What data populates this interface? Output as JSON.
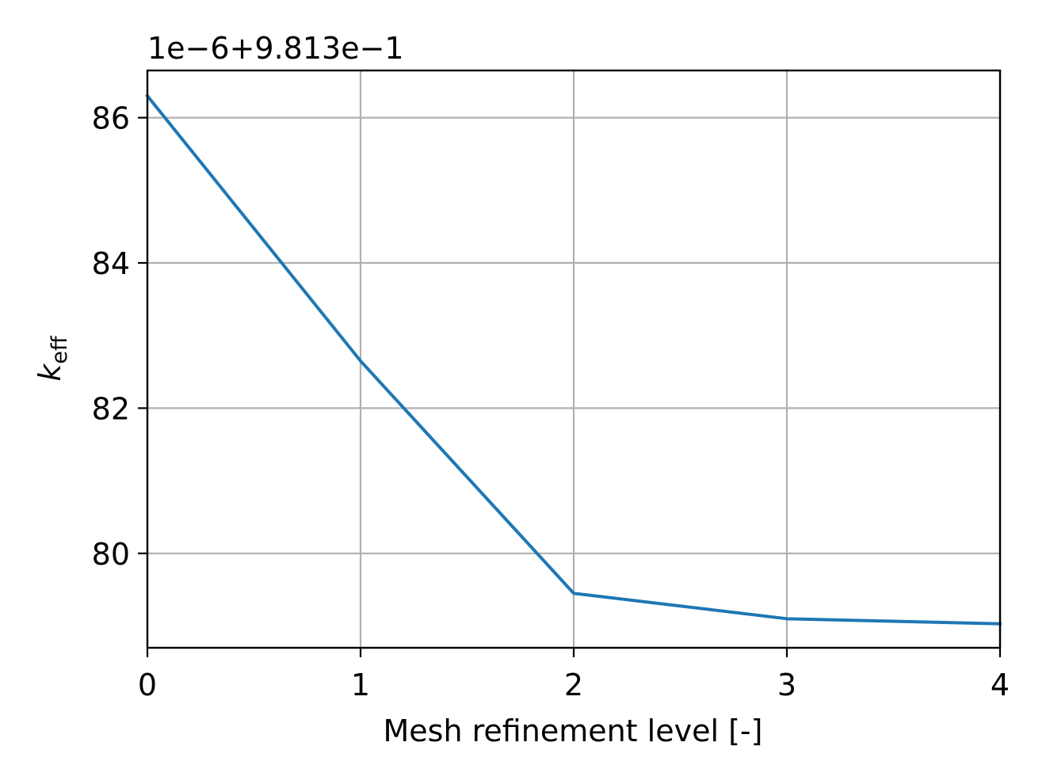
{
  "chart_data": {
    "type": "line",
    "title": "",
    "xlabel": "Mesh refinement level [-]",
    "ylabel_base": "k",
    "ylabel_subscript": "eff",
    "offset_text": "1e−6+9.813e−1",
    "xlim": [
      0,
      4
    ],
    "ylim": [
      78.7,
      86.65
    ],
    "xticks": [
      0,
      1,
      2,
      3,
      4
    ],
    "xtick_labels": [
      "0",
      "1",
      "2",
      "3",
      "4"
    ],
    "yticks": [
      80,
      82,
      84,
      86
    ],
    "ytick_labels": [
      "80",
      "82",
      "84",
      "86"
    ],
    "grid": true,
    "legend": "none",
    "series": [
      {
        "color": "#1f77b4",
        "x": [
          0,
          1,
          2,
          3,
          4
        ],
        "values": [
          86.3,
          82.65,
          79.45,
          79.1,
          79.03
        ]
      }
    ]
  }
}
